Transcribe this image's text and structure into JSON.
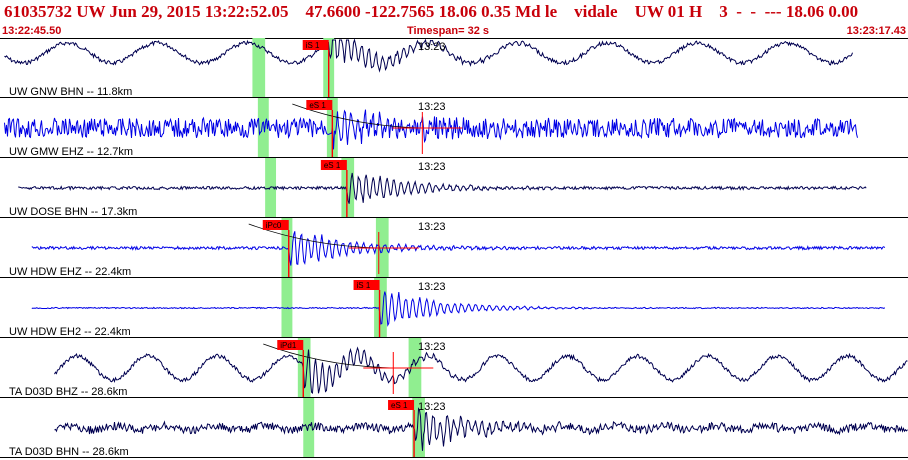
{
  "header": {
    "title": "61035732 UW Jun 29, 2015 13:22:52.05    47.6600 -122.7565 18.06 0.35 Md le    vidale    UW 01 H    3  -  -  --- 18.06 0.00",
    "start_time": "13:22:45.50",
    "timespan": "Timespan=  32 s",
    "end_time": "13:23:17.43"
  },
  "colors": {
    "header_text": "#c8000a",
    "grid": "#000000",
    "pick": "#ff0000",
    "window": "#90ee90",
    "trace_bhn": "#000050",
    "trace_ehz": "#0000e6"
  },
  "traces": [
    {
      "label": "UW GNW BHN -- 11.8km",
      "time_mark": "13:23",
      "color": "trace_bhn",
      "picks": [
        {
          "label": "iS 1",
          "t": 0.362
        }
      ],
      "windows": [
        [
          0.278,
          0.292
        ],
        [
          0.356,
          0.368
        ]
      ],
      "model_curve": false
    },
    {
      "label": "UW GMW EHZ -- 12.7km",
      "time_mark": "13:23",
      "color": "trace_ehz",
      "picks": [
        {
          "label": "eS 1",
          "t": 0.366
        }
      ],
      "windows": [
        [
          0.284,
          0.296
        ],
        [
          0.36,
          0.372
        ]
      ],
      "model_curve": true
    },
    {
      "label": "UW DOSE BHN -- 17.3km",
      "time_mark": "13:23",
      "color": "trace_bhn",
      "picks": [
        {
          "label": "eS 1",
          "t": 0.382
        }
      ],
      "windows": [
        [
          0.292,
          0.304
        ],
        [
          0.376,
          0.39
        ]
      ],
      "model_curve": false
    },
    {
      "label": "UW HDW EHZ -- 22.4km",
      "time_mark": "13:23",
      "color": "trace_ehz",
      "picks": [
        {
          "label": "iPc0",
          "t": 0.318
        }
      ],
      "windows": [
        [
          0.31,
          0.322
        ],
        [
          0.414,
          0.428
        ]
      ],
      "model_curve": true
    },
    {
      "label": "UW HDW EH2 -- 22.4km",
      "time_mark": "13:23",
      "color": "trace_ehz",
      "picks": [
        {
          "label": "iS 1",
          "t": 0.418
        }
      ],
      "windows": [
        [
          0.31,
          0.322
        ],
        [
          0.412,
          0.426
        ]
      ],
      "model_curve": false
    },
    {
      "label": "TA D03D BHZ -- 28.6km",
      "time_mark": "13:23",
      "color": "trace_bhn",
      "picks": [
        {
          "label": "iPd1",
          "t": 0.334
        }
      ],
      "windows": [
        [
          0.328,
          0.342
        ],
        [
          0.45,
          0.464
        ]
      ],
      "model_curve": true
    },
    {
      "label": "TA D03D BHN -- 28.6km",
      "time_mark": "13:23",
      "color": "trace_bhn",
      "picks": [
        {
          "label": "eS 1",
          "t": 0.456
        }
      ],
      "windows": [
        [
          0.334,
          0.346
        ],
        [
          0.454,
          0.468
        ]
      ],
      "model_curve": false
    }
  ]
}
